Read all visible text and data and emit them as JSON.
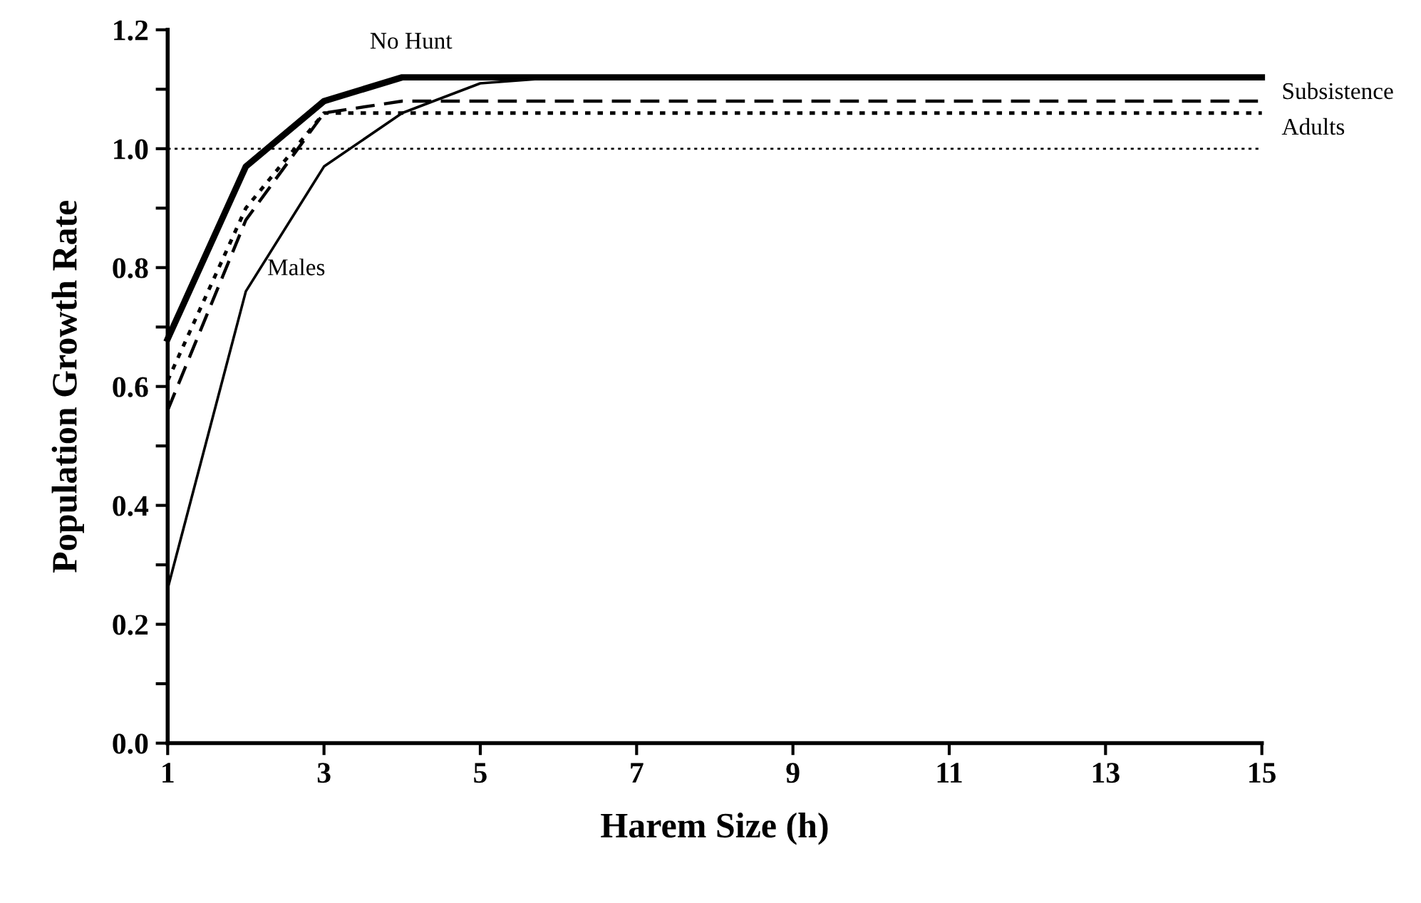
{
  "chart_data": {
    "type": "line",
    "xlabel": "Harem Size (h)",
    "ylabel": "Population Growth Rate",
    "x": [
      1,
      2,
      3,
      4,
      5,
      6,
      7,
      8,
      9,
      10,
      11,
      12,
      13,
      14,
      15
    ],
    "series": [
      {
        "name": "No Hunt",
        "color": "#000000",
        "line_style": "solid",
        "values": [
          0.68,
          0.97,
          1.08,
          1.12,
          1.12,
          1.12,
          1.12,
          1.12,
          1.12,
          1.12,
          1.12,
          1.12,
          1.12,
          1.12,
          1.12
        ]
      },
      {
        "name": "Subsistence",
        "color": "#000000",
        "line_style": "dashed",
        "values": [
          0.56,
          0.88,
          1.06,
          1.08,
          1.08,
          1.08,
          1.08,
          1.08,
          1.08,
          1.08,
          1.08,
          1.08,
          1.08,
          1.08,
          1.08
        ]
      },
      {
        "name": "Adults",
        "color": "#000000",
        "line_style": "dotted",
        "values": [
          0.61,
          0.9,
          1.06,
          1.06,
          1.06,
          1.06,
          1.06,
          1.06,
          1.06,
          1.06,
          1.06,
          1.06,
          1.06,
          1.06,
          1.06
        ]
      },
      {
        "name": "Males",
        "color": "#000000",
        "line_style": "solid",
        "values": [
          0.26,
          0.76,
          0.97,
          1.06,
          1.11,
          1.12,
          1.12,
          1.12,
          1.12,
          1.12,
          1.12,
          1.12,
          1.12,
          1.12,
          1.12
        ]
      }
    ],
    "xlim": [
      1,
      15
    ],
    "xticks": [
      1,
      3,
      5,
      7,
      9,
      11,
      13,
      15
    ],
    "ylim": [
      0,
      1.2
    ],
    "yticks": [
      {
        "value": 0,
        "label": "0.0"
      },
      {
        "value": 0.1,
        "label": null
      },
      {
        "value": 0.2,
        "label": "0.2"
      },
      {
        "value": 0.3,
        "label": null
      },
      {
        "value": 0.4,
        "label": "0.4"
      },
      {
        "value": 0.5,
        "label": null
      },
      {
        "value": 0.6,
        "label": "0.6"
      },
      {
        "value": 0.7,
        "label": null
      },
      {
        "value": 0.8,
        "label": "0.8"
      },
      {
        "value": 0.9,
        "label": null
      },
      {
        "value": 1.0,
        "label": "1.0"
      },
      {
        "value": 1.1,
        "label": null
      },
      {
        "value": 1.2,
        "label": "1.2"
      }
    ],
    "ref_lines": [
      {
        "axis": "y",
        "value": 1.0,
        "color": "#000000",
        "line_style": "dotted"
      }
    ],
    "marker": "none",
    "grid": false,
    "legend": false
  }
}
